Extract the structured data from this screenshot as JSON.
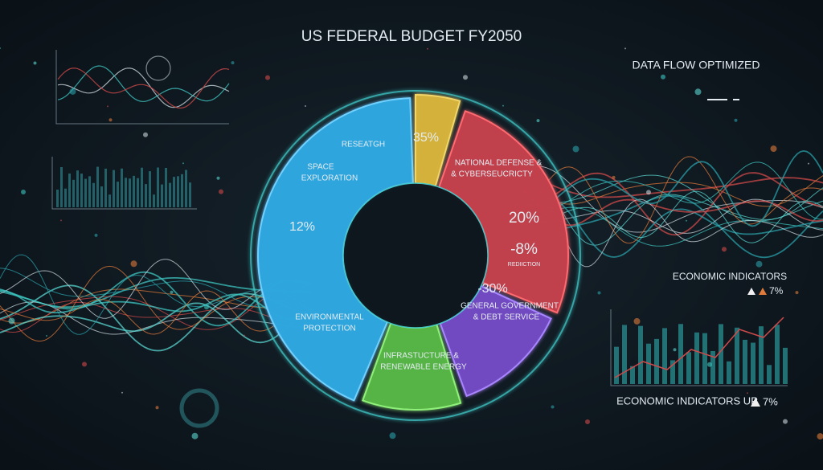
{
  "title": "US FEDERAL BUDGET FY2050",
  "header_right": "DATA FLOW OPTIMIZED",
  "indicator_top": {
    "label": "ECONOMIC INDICATORS",
    "value": "7%"
  },
  "indicator_bottom": {
    "label": "ECONOMIC INDICATORS UP",
    "value": "7%"
  },
  "donut": {
    "segments": [
      {
        "texts": [
          "RESEATGH",
          "SPACE",
          "EXPLORATION",
          "12%",
          "ENVIRONMENTAL",
          "PROTECTION"
        ]
      },
      {
        "texts": [
          "35%"
        ]
      },
      {
        "texts": [
          "NATIONAL DEFENSE &",
          "& CYBERSEUCRICTY",
          "20%",
          "-8%",
          "REDIICTION"
        ]
      },
      {
        "texts": [
          "-30%",
          "GENERAL GOVERNMENT",
          "& DEBT SERVICE"
        ]
      },
      {
        "texts": [
          "INFRASTUCTURE &",
          "RENEWABLE ENERGY"
        ]
      }
    ]
  }
}
